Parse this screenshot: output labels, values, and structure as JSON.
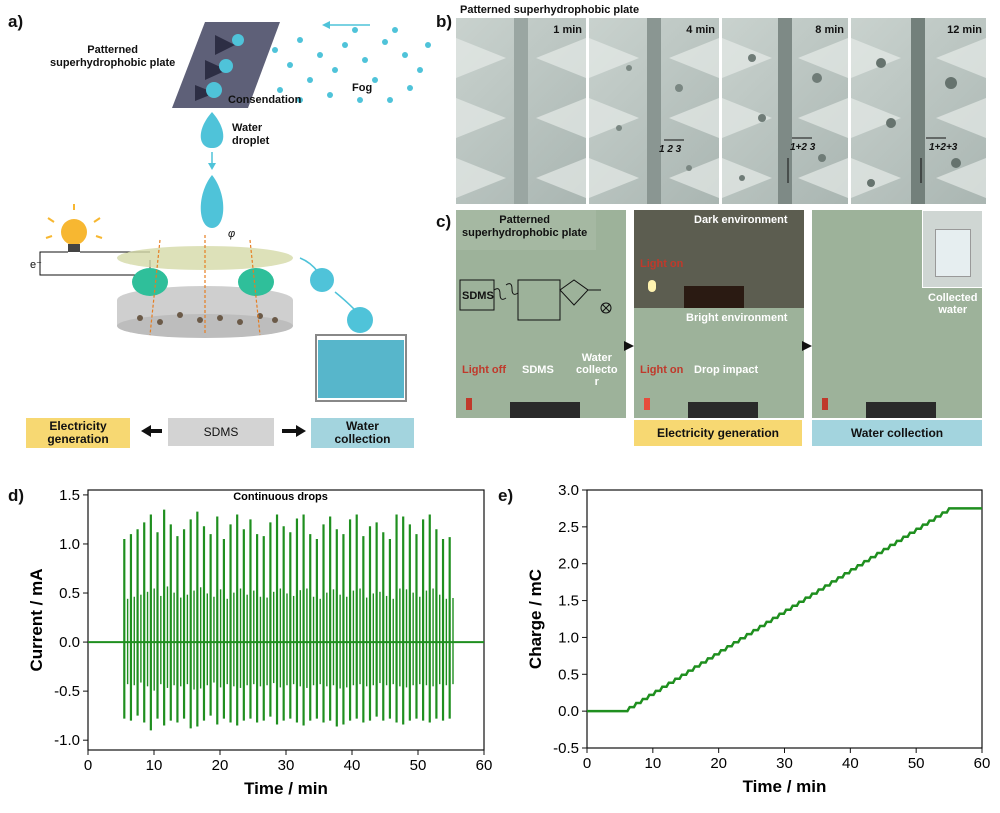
{
  "panel_a": {
    "letter": "a)",
    "plate_label": "Patterned\nsuperhydrophobic plate",
    "condensation_label": "Consendation",
    "fog_label": "Fog",
    "droplet_label": "Water\ndroplet",
    "electron_label": "e⁻",
    "phi_label": "φ",
    "electricity_tag": "Electricity\ngeneration",
    "sdms_tag": "SDMS",
    "water_tag": "Water\ncollection",
    "colors": {
      "yellow": "#f7d872",
      "gray": "#d3d3d3",
      "blue": "#a3d4de",
      "droplet": "#4fc3d9",
      "bulb": "#f7b731"
    }
  },
  "panel_b": {
    "letter": "b)",
    "title": "Patterned superhydrophobic plate",
    "frames": [
      {
        "time": "1 min",
        "annotation": ""
      },
      {
        "time": "4 min",
        "annotation": "1  2  3"
      },
      {
        "time": "8 min",
        "annotation": "1+2  3"
      },
      {
        "time": "12 min",
        "annotation": "1+2+3"
      }
    ]
  },
  "panel_c": {
    "letter": "c)",
    "plate_label": "Patterned\nsuperhydrophobic plate",
    "sdms_box": "SDMS",
    "light_off": "Light off",
    "sdms_label": "SDMS",
    "water_collector": "Water\ncollecto\nr",
    "dark_env": "Dark environment",
    "light_on_dark": "Light on",
    "bright_env": "Bright environment",
    "light_on_bright": "Light on",
    "drop_impact": "Drop impact",
    "collected_water": "Collected\nwater",
    "electricity_tag": "Electricity generation",
    "water_tag": "Water collection"
  },
  "chart_data": [
    {
      "id": "d",
      "letter": "d)",
      "type": "line",
      "annotation": "Continuous drops",
      "xlabel": "Time / min",
      "ylabel": "Current / mA",
      "xlim": [
        0,
        60
      ],
      "ylim": [
        -1.1,
        1.55
      ],
      "xticks": [
        0,
        10,
        20,
        30,
        40,
        50,
        60
      ],
      "yticks": [
        -1.0,
        -0.5,
        0.0,
        0.5,
        1.0,
        1.5
      ],
      "pulse_start": 5.5,
      "pulse_end": 54.8,
      "pulse_count": 50,
      "pulse_peaks": [
        1.05,
        1.1,
        1.15,
        1.22,
        1.3,
        1.12,
        1.35,
        1.2,
        1.08,
        1.15,
        1.25,
        1.33,
        1.18,
        1.1,
        1.28,
        1.05,
        1.2,
        1.3,
        1.15,
        1.25,
        1.1,
        1.08,
        1.22,
        1.3,
        1.18,
        1.12,
        1.26,
        1.3,
        1.1,
        1.05,
        1.2,
        1.28,
        1.15,
        1.1,
        1.25,
        1.3,
        1.08,
        1.18,
        1.22,
        1.12,
        1.05,
        1.3,
        1.28,
        1.2,
        1.1,
        1.25,
        1.3,
        1.15,
        1.05,
        1.07
      ],
      "pulse_troughs": [
        -0.78,
        -0.8,
        -0.75,
        -0.82,
        -0.9,
        -0.78,
        -0.85,
        -0.8,
        -0.82,
        -0.78,
        -0.88,
        -0.86,
        -0.8,
        -0.75,
        -0.84,
        -0.78,
        -0.82,
        -0.85,
        -0.8,
        -0.78,
        -0.82,
        -0.8,
        -0.76,
        -0.84,
        -0.8,
        -0.78,
        -0.82,
        -0.85,
        -0.8,
        -0.78,
        -0.82,
        -0.8,
        -0.86,
        -0.84,
        -0.8,
        -0.78,
        -0.82,
        -0.8,
        -0.76,
        -0.8,
        -0.78,
        -0.82,
        -0.84,
        -0.8,
        -0.78,
        -0.8,
        -0.82,
        -0.78,
        -0.8,
        -0.78
      ],
      "color": "#1f8f1f"
    },
    {
      "id": "e",
      "letter": "e)",
      "type": "line",
      "xlabel": "Time / min",
      "ylabel": "Charge / mC",
      "xlim": [
        0,
        60
      ],
      "ylim": [
        -0.5,
        3.0
      ],
      "xticks": [
        0,
        10,
        20,
        30,
        40,
        50,
        60
      ],
      "yticks": [
        -0.5,
        0.0,
        0.5,
        1.0,
        1.5,
        2.0,
        2.5,
        3.0
      ],
      "x": [
        0,
        5.5,
        55,
        60
      ],
      "y": [
        0.0,
        0.0,
        2.75,
        2.75
      ],
      "steps": 50,
      "color": "#1f8f1f"
    }
  ]
}
